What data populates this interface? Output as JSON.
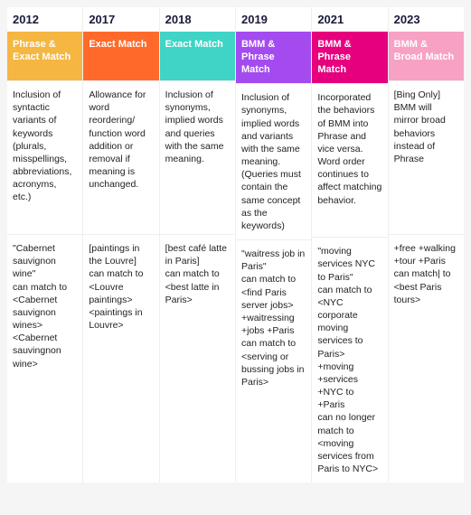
{
  "columns": [
    {
      "year": "2012",
      "header": "Phrase & Exact Match",
      "header_bg": "#f5b642",
      "description": "Inclusion of syntactic variants of keywords (plurals, misspellings, abbreviations, acronyms, etc.)",
      "example": "\"Cabernet sauvignon wine\"\ncan match to\n<Cabernet sauvignon wines>\n<Cabernet sauvingnon wine>"
    },
    {
      "year": "2017",
      "header": "Exact Match",
      "header_bg": "#ff6a2b",
      "description": "Allowance for word reordering/ function word addition or removal if meaning is unchanged.",
      "example": "[paintings in the Louvre]\ncan match to\n<Louvre paintings>\n<paintings in Louvre>"
    },
    {
      "year": "2018",
      "header": "Exact Match",
      "header_bg": "#3fd4c5",
      "description": "Inclusion of synonyms, implied words and queries with the same meaning.",
      "example": "[best café latte in Paris]\ncan match to\n<best latte in Paris>"
    },
    {
      "year": "2019",
      "header": "BMM & Phrase Match",
      "header_bg": "#a44bf0",
      "description": "Inclusion of synonyms, implied words and variants with the same meaning. (Queries must contain the same concept as the keywords)",
      "example": "\"waitress job in Paris\"\ncan match to\n<find Paris server jobs>\n+waitressing +jobs +Paris\ncan match to\n<serving or bussing jobs in Paris>"
    },
    {
      "year": "2021",
      "header": "BMM & Phrase Match",
      "header_bg": "#e6007e",
      "description": "Incorporated the behaviors of BMM into Phrase and vice versa. Word order continues to affect matching behavior.",
      "example": "\"moving services NYC to Paris\"\ncan match to\n<NYC corporate moving services to Paris>\n+moving +services +NYC to +Paris\ncan no longer match to\n<moving services from Paris to NYC>"
    },
    {
      "year": "2023",
      "header": "BMM & Broad Match",
      "header_bg": "#f7a1c4",
      "description": "[Bing Only] BMM will mirror broad behaviors instead of Phrase",
      "example": "+free +walking +tour +Paris can match| to\n<best Paris tours>"
    }
  ],
  "table_bg": "#ffffff",
  "border_color": "#eeeeee"
}
